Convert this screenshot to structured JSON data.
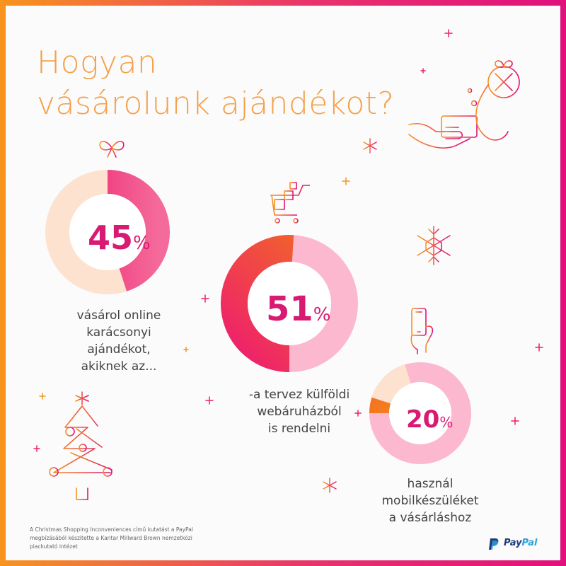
{
  "title": {
    "line1": "Hogyan",
    "line2": "vásárolunk ajándékot?"
  },
  "stats": [
    {
      "value": "45",
      "unit": "%",
      "percent": 45,
      "label_lines": [
        "vásárol online",
        "karácsonyi",
        "ajándékot,",
        "akiknek az..."
      ],
      "colors": {
        "fill": "#ee1e6e",
        "fill_light": "#f46a9a",
        "rest": "#fde2cf"
      }
    },
    {
      "value": "51",
      "unit": "%",
      "percent": 51,
      "label_lines": [
        "-a tervez külföldi",
        "webáruházból",
        "is rendelni"
      ],
      "colors": {
        "fill": "#f26d21",
        "fill_light": "#f9972c",
        "rest": "#fbb8cf"
      }
    },
    {
      "value": "20",
      "unit": "%",
      "percent": 20,
      "label_lines": [
        "használ",
        "mobilkészüléket",
        "a vásárláshoz"
      ],
      "colors": {
        "fill": "#f68e13",
        "fill_light": "#f9a41c",
        "rest": "#fbb8cf"
      }
    }
  ],
  "footnote": "A Christmas Shopping Inconveniences című kutatást a PayPal megbízásából készítette a Kantar Millward Brown nemzetközi piackutató intézet",
  "brand": {
    "name_part1": "Pay",
    "name_part2": "Pal"
  },
  "icons": [
    "bow-icon",
    "shopping-cart-icon",
    "snowflake-icon",
    "hand-card-icon",
    "ornament-icon",
    "smartphone-icon",
    "christmas-tree-icon",
    "paypal-logo-icon"
  ],
  "colors": {
    "accent_orange": "#f7941d",
    "accent_pink": "#e0107c",
    "text": "#444444"
  }
}
